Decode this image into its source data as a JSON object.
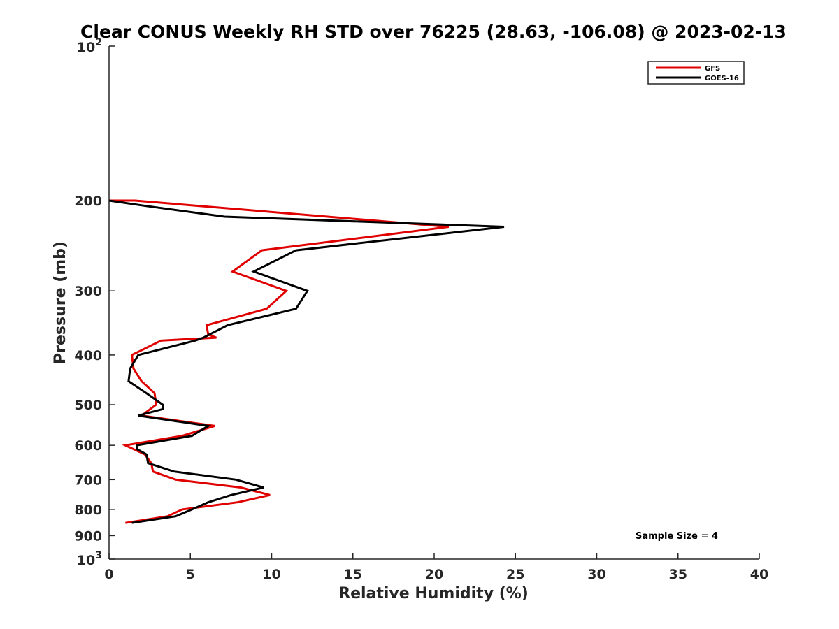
{
  "chart_data": {
    "type": "line",
    "title": "Clear CONUS Weekly RH STD over 76225 (28.63, -106.08) @ 2023-02-13",
    "xlabel": "Relative Humidity (%)",
    "ylabel": "Pressure (mb)",
    "xlim": [
      0,
      40
    ],
    "ylim": [
      1000,
      100
    ],
    "yscale": "log",
    "y_reversed": true,
    "xticks": [
      0,
      5,
      10,
      15,
      20,
      25,
      30,
      35,
      40
    ],
    "xtick_labels": [
      "0",
      "5",
      "10",
      "15",
      "20",
      "25",
      "30",
      "35",
      "40"
    ],
    "yticks": [
      200,
      300,
      400,
      500,
      600,
      700,
      800,
      900
    ],
    "ytick_labels": [
      "200",
      "300",
      "400",
      "500",
      "600",
      "700",
      "800",
      "900"
    ],
    "ytick_end_labels": {
      "top_base": "10",
      "top_exp": "2",
      "bottom_base": "10",
      "bottom_exp": "3"
    },
    "grid": false,
    "legend_position": "top-right",
    "annotation": "Sample Size = 4",
    "series": [
      {
        "name": "GFS",
        "color": "#e00000",
        "x": [
          1.0,
          3.6,
          4.5,
          7.9,
          9.9,
          8.1,
          4.1,
          2.7,
          2.6,
          2.2,
          1.0,
          4.5,
          6.5,
          2.0,
          2.9,
          2.8,
          2.0,
          1.5,
          1.4,
          3.2,
          6.6,
          6.1,
          6.0,
          9.7,
          10.9,
          7.6,
          9.4,
          20.9,
          1.6,
          0.0
        ],
        "y": [
          850,
          825,
          800,
          775,
          750,
          725,
          700,
          675,
          650,
          625,
          600,
          575,
          550,
          525,
          500,
          475,
          450,
          425,
          400,
          375,
          370,
          365,
          350,
          325,
          300,
          275,
          250,
          225,
          200,
          200
        ],
        "y_note": "pressure levels (mb)"
      },
      {
        "name": "GOES-16",
        "color": "#000000",
        "x": [
          1.4,
          4.1,
          5.1,
          6.1,
          7.5,
          9.5,
          7.8,
          4.0,
          2.4,
          2.3,
          1.7,
          1.7,
          5.1,
          6.1,
          1.8,
          3.3,
          3.3,
          2.3,
          1.2,
          1.3,
          1.8,
          5.3,
          5.8,
          7.3,
          11.5,
          12.2,
          8.9,
          11.5,
          24.3,
          7.1,
          2.3,
          0.0
        ],
        "y": [
          850,
          825,
          800,
          775,
          750,
          725,
          700,
          675,
          650,
          625,
          610,
          600,
          575,
          550,
          525,
          510,
          500,
          475,
          450,
          425,
          400,
          375,
          370,
          350,
          325,
          300,
          275,
          250,
          225,
          215,
          205,
          200
        ]
      }
    ]
  }
}
